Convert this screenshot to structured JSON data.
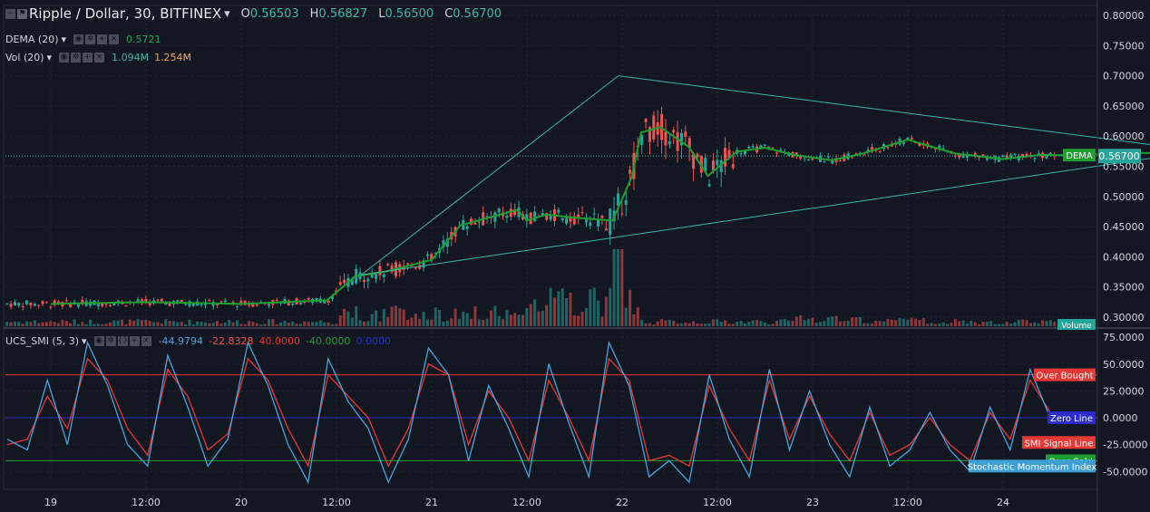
{
  "header": {
    "symbol": "Ripple / Dollar, 30, BITFINEX",
    "o_label": "O",
    "o": "0.56503",
    "h_label": "H",
    "h": "0.56827",
    "l_label": "L",
    "l": "0.56500",
    "c_label": "C",
    "c": "0.56700"
  },
  "indicators": {
    "dema": {
      "label": "DEMA (20)",
      "value": "0.5721"
    },
    "vol": {
      "label": "Vol (20)",
      "value1": "1.094M",
      "value2": "1.254M"
    },
    "smi": {
      "label": "UCS_SMI (5, 3)",
      "v1": "-44.9794",
      "v2": "-22.8328",
      "v3": "40.0000",
      "v4": "-40.0000",
      "v5": "0.0000"
    }
  },
  "price_axis": {
    "ticks": [
      "0.80000",
      "0.75000",
      "0.70000",
      "0.65000",
      "0.60000",
      "0.55000",
      "0.50000",
      "0.45000",
      "0.40000",
      "0.35000",
      "0.30000"
    ],
    "current": "0.56700",
    "dema_tag": "DEMA",
    "volume_tag": "Volume"
  },
  "smi_axis": {
    "ticks": [
      "75.0000",
      "50.0000",
      "25.0000",
      "0.0000",
      "-25.0000",
      "-50.0000"
    ]
  },
  "smi_labels": {
    "over_bought": "Over Bought",
    "zero_line": "Zero Line",
    "signal_line": "SMI Signal Line",
    "over_sold": "Over Sold",
    "stochastic": "Stochastic Momentum Index"
  },
  "time_axis": {
    "labels": [
      "19",
      "12:00",
      "20",
      "12:00",
      "21",
      "12:00",
      "22",
      "12:00",
      "23",
      "12:00",
      "24"
    ]
  },
  "colors": {
    "background": "#131722",
    "up": "#26a69a",
    "down": "#ef5350",
    "dema": "#1e9e2e",
    "triangle": "#3fb6a8",
    "smi": "#4aa3df",
    "signal": "#e53935",
    "over_bought": "#e53935",
    "zero": "#2c2ccf",
    "over_sold": "#1e9e2e"
  },
  "chart_data": [
    {
      "type": "candlestick",
      "title": "Ripple / Dollar, 30, BITFINEX",
      "x": [
        "19",
        "12:00",
        "20",
        "12:00",
        "21",
        "12:00",
        "22",
        "12:00",
        "23",
        "12:00",
        "24"
      ],
      "ylim": [
        0.285,
        0.81
      ],
      "series": [
        {
          "name": "DEMA (20)",
          "x": [
            0,
            0.5,
            1,
            1.45,
            1.6,
            1.75,
            2.0,
            2.15,
            2.45,
            2.5,
            2.6,
            2.75,
            2.95,
            3.05,
            3.1,
            3.2,
            3.35,
            3.45,
            3.6,
            3.75,
            3.9,
            4.1,
            4.25,
            4.5,
            4.75,
            5.0,
            5.2,
            5.4,
            5.6,
            5.8,
            5.9
          ],
          "values": [
            0.322,
            0.325,
            0.322,
            0.328,
            0.368,
            0.375,
            0.395,
            0.452,
            0.478,
            0.46,
            0.47,
            0.465,
            0.46,
            0.532,
            0.606,
            0.615,
            0.582,
            0.534,
            0.574,
            0.581,
            0.569,
            0.56,
            0.57,
            0.594,
            0.571,
            0.562,
            0.569,
            0.568,
            0.572,
            0.572,
            0.57
          ]
        },
        {
          "name": "Triangle",
          "x": [
            1.63,
            2.98,
            5.92
          ],
          "values": [
            0.37,
            0.7,
            0.58
          ]
        },
        {
          "name": "Triangle lower",
          "x": [
            1.63,
            5.92
          ],
          "values": [
            0.37,
            0.57
          ]
        }
      ],
      "close": 0.567
    },
    {
      "type": "line",
      "title": "UCS_SMI (5, 3)",
      "ylim": [
        -67.5,
        80
      ],
      "levels": {
        "over_bought": 40,
        "zero": 0,
        "over_sold": -40
      },
      "series": [
        {
          "name": "SMI",
          "values": [
            -20,
            -30,
            35,
            -25,
            70,
            30,
            -25,
            -45,
            58,
            10,
            -45,
            -20,
            70,
            30,
            -25,
            -60,
            55,
            15,
            -10,
            -60,
            -20,
            65,
            40,
            -40,
            30,
            -10,
            -55,
            50,
            -5,
            -55,
            70,
            30,
            -55,
            -40,
            -60,
            40,
            -20,
            -55,
            45,
            -30,
            25,
            -25,
            -55,
            10,
            -45,
            -30,
            5,
            -30,
            -50,
            10,
            -30,
            45,
            0
          ]
        },
        {
          "name": "SMI Signal Line",
          "values": [
            -25,
            -20,
            20,
            -10,
            55,
            35,
            -10,
            -35,
            45,
            20,
            -30,
            -15,
            55,
            35,
            -10,
            -45,
            40,
            20,
            0,
            -45,
            -10,
            50,
            40,
            -25,
            25,
            0,
            -40,
            35,
            0,
            -40,
            55,
            35,
            -40,
            -35,
            -45,
            30,
            -10,
            -40,
            35,
            -20,
            20,
            -15,
            -40,
            5,
            -35,
            -25,
            0,
            -25,
            -40,
            5,
            -20,
            35,
            5
          ]
        }
      ]
    }
  ]
}
